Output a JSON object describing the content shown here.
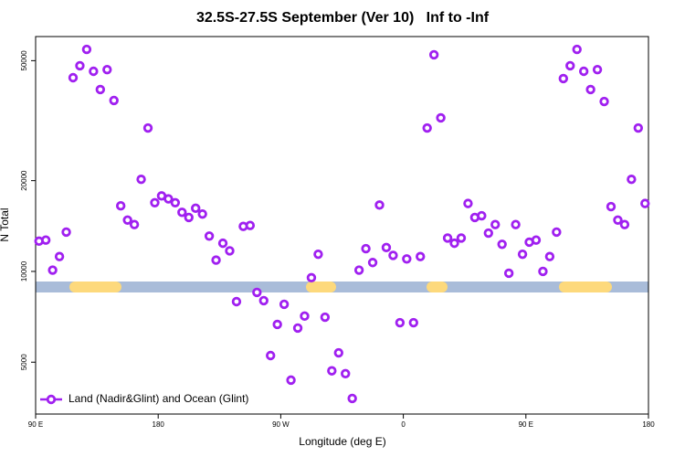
{
  "chart_data": {
    "type": "scatter",
    "title": "32.5S-27.5S September (Ver 10)   Inf to -Inf",
    "xlabel": "Longitude (deg E)",
    "ylabel": "N Total",
    "ylog": true,
    "xlim": [
      90,
      540
    ],
    "ylim": [
      3365,
      60100
    ],
    "xticks": [
      {
        "value": 90,
        "label": "90 E"
      },
      {
        "value": 180,
        "label": "180"
      },
      {
        "value": 270,
        "label": "90 W"
      },
      {
        "value": 360,
        "label": "0"
      },
      {
        "value": 450,
        "label": "90 E"
      },
      {
        "value": 540,
        "label": "180"
      }
    ],
    "yticks": [
      5000,
      10000,
      20000,
      50000
    ],
    "legend": "bottom-left",
    "series": [
      {
        "name": "Land (Nadir&Glint) and Ocean (Glint)",
        "color": "#a020f0",
        "x": [
          92.5,
          97.5,
          102.5,
          107.5,
          112.5,
          117.5,
          122.5,
          127.5,
          132.5,
          137.5,
          142.5,
          147.5,
          152.5,
          157.5,
          162.5,
          167.5,
          172.5,
          177.5,
          182.5,
          187.5,
          192.5,
          197.5,
          202.5,
          207.5,
          212.5,
          217.5,
          222.5,
          227.5,
          232.5,
          237.5,
          242.5,
          247.5,
          252.5,
          257.5,
          262.5,
          267.5,
          272.5,
          277.5,
          282.5,
          287.5,
          292.5,
          297.5,
          302.5,
          307.5,
          312.5,
          317.5,
          322.5,
          327.5,
          332.5,
          337.5,
          342.5,
          347.5,
          352.5,
          357.5,
          362.5,
          367.5,
          372.5,
          377.5,
          382.5,
          387.5,
          392.5,
          397.5,
          402.5,
          407.5,
          412.5,
          417.5,
          422.5,
          427.5,
          432.5,
          437.5,
          442.5,
          447.5,
          452.5,
          457.5,
          462.5,
          467.5,
          472.5,
          477.5,
          482.5,
          487.5,
          492.5,
          497.5,
          502.5,
          507.5,
          512.5,
          517.5,
          522.5,
          527.5,
          532.5,
          537.5
        ],
        "values": [
          12600,
          12700,
          10100,
          11200,
          13500,
          43900,
          48100,
          54500,
          46100,
          40100,
          46700,
          36900,
          16500,
          14800,
          14300,
          20200,
          29900,
          16900,
          17800,
          17400,
          16900,
          15700,
          15100,
          16200,
          15500,
          13100,
          10900,
          12400,
          11700,
          7940,
          14100,
          14200,
          8520,
          8000,
          5260,
          6670,
          7780,
          4360,
          6490,
          7110,
          9530,
          11400,
          7050,
          4680,
          5370,
          4580,
          3790,
          10100,
          11900,
          10700,
          16600,
          12000,
          11300,
          6760,
          11000,
          6760,
          11200,
          29900,
          52300,
          32300,
          12900,
          12400,
          12900,
          16800,
          15100,
          15300,
          13400,
          14300,
          12300,
          9860,
          14300,
          11400,
          12500,
          12700,
          10000,
          11200,
          13500,
          43600,
          48100,
          54500,
          46100,
          40100,
          46700,
          36600,
          16400,
          14800,
          14300,
          20200,
          29900,
          16800
        ]
      }
    ]
  }
}
